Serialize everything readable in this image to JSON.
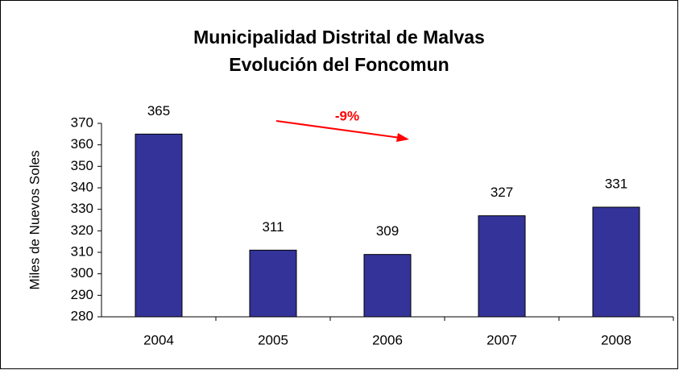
{
  "chart_data": {
    "type": "bar",
    "title": "Municipalidad Distrital de Malvas",
    "subtitle": "Evolución del Foncomun",
    "y_label": "Miles de Nuevos Soles",
    "annotation": "-9%",
    "categories": [
      "2004",
      "2005",
      "2006",
      "2007",
      "2008"
    ],
    "values": [
      365,
      311,
      309,
      327,
      331
    ],
    "color": "#333399",
    "ylim": [
      280,
      370
    ],
    "yticks": [
      280,
      290,
      300,
      310,
      320,
      330,
      340,
      350,
      360,
      370
    ],
    "grid": false
  }
}
